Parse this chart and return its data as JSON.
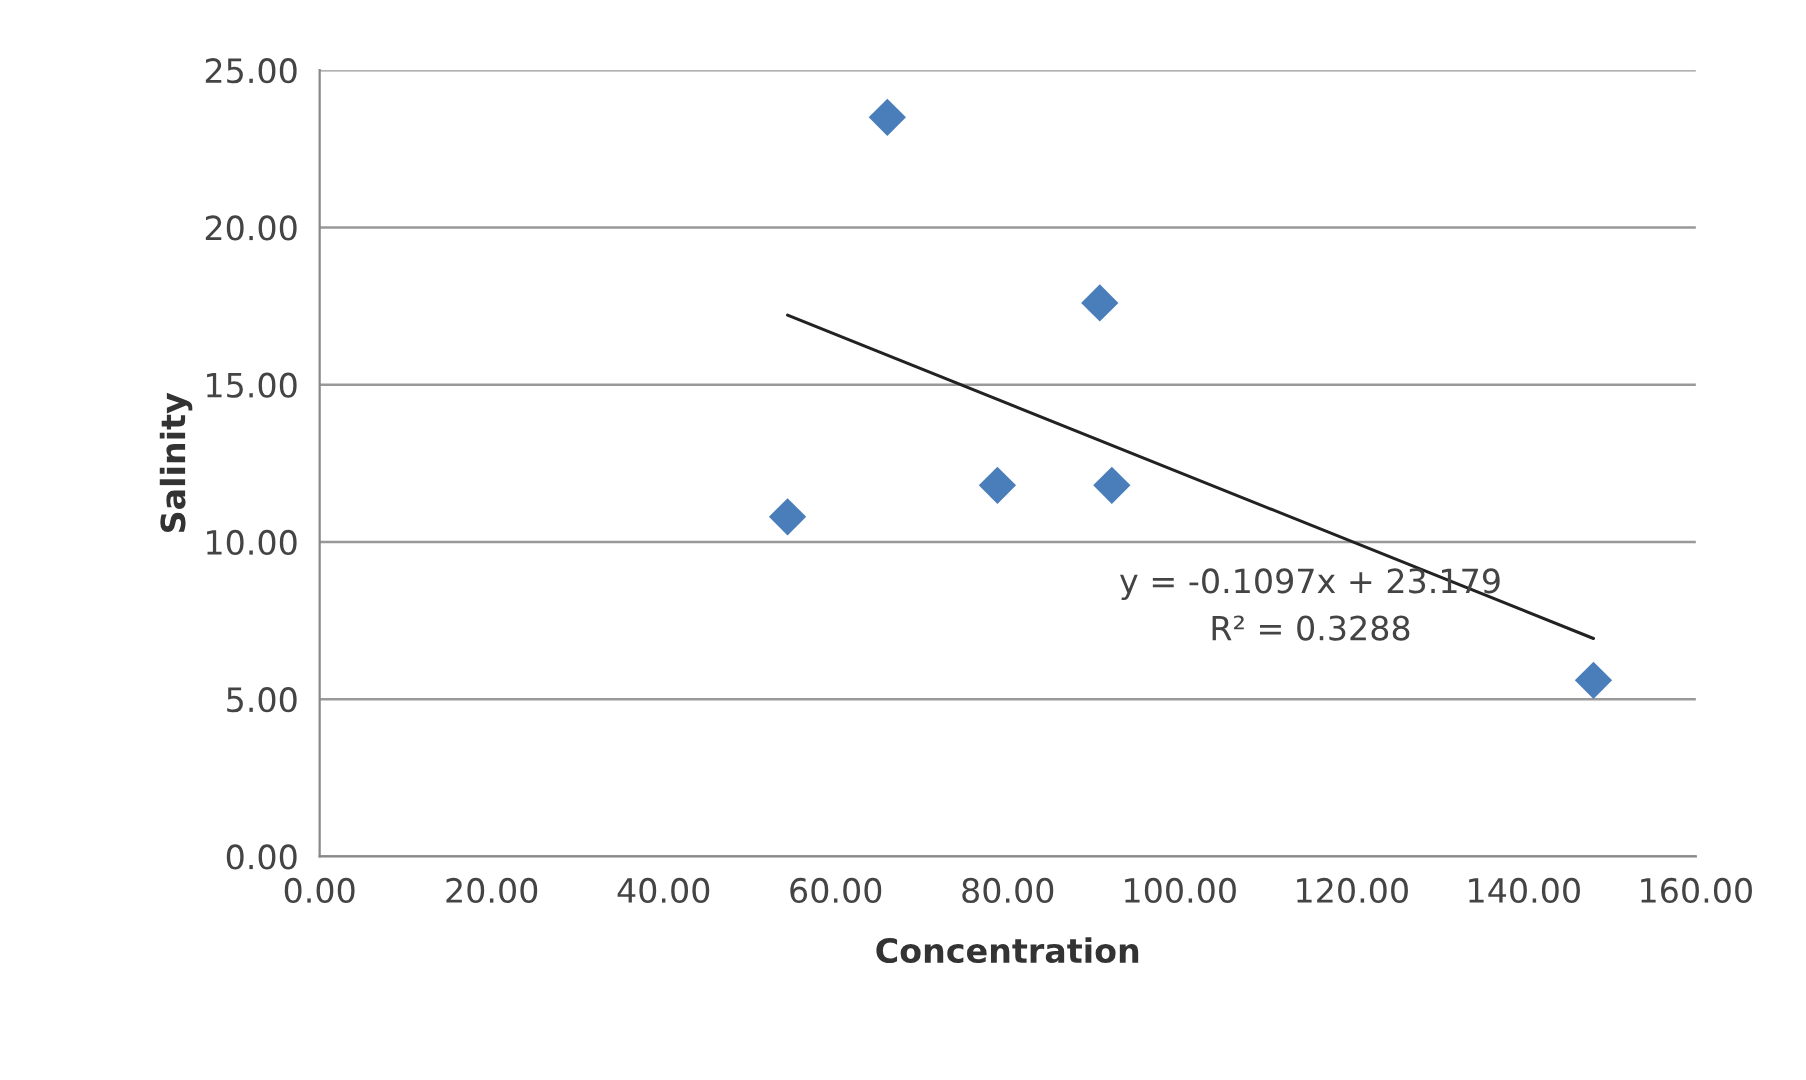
{
  "chart_data": {
    "type": "scatter",
    "xlabel": "Concentration",
    "ylabel": "Salinity",
    "series": [
      {
        "color": "#4a7ebb",
        "marker": "diamond",
        "x": [
          54.4,
          66.0,
          78.8,
          90.7,
          92.1,
          148.1
        ],
        "values": [
          10.8,
          23.5,
          11.8,
          17.6,
          11.8,
          5.6
        ]
      },
      {
        "type": "line",
        "color": "#222222",
        "marker": "none",
        "line_style": "solid",
        "x": [
          54.4,
          148.1
        ],
        "values": [
          17.21,
          6.93
        ]
      }
    ],
    "annotations": [
      "y = -0.1097x + 23.179",
      "R² = 0.3288"
    ],
    "xlim": [
      0,
      160
    ],
    "ylim": [
      0,
      25
    ],
    "xticks": [
      {
        "value": 0,
        "label": "0.00"
      },
      {
        "value": 20,
        "label": "20.00"
      },
      {
        "value": 40,
        "label": "40.00"
      },
      {
        "value": 60,
        "label": "60.00"
      },
      {
        "value": 80,
        "label": "80.00"
      },
      {
        "value": 100,
        "label": "100.00"
      },
      {
        "value": 120,
        "label": "120.00"
      },
      {
        "value": 140,
        "label": "140.00"
      },
      {
        "value": 160,
        "label": "160.00"
      }
    ],
    "yticks": [
      {
        "value": 0,
        "label": "0.00"
      },
      {
        "value": 5,
        "label": "5.00"
      },
      {
        "value": 10,
        "label": "10.00"
      },
      {
        "value": 15,
        "label": "15.00"
      },
      {
        "value": 20,
        "label": "20.00"
      },
      {
        "value": 25,
        "label": "25.00"
      }
    ],
    "grid": "y",
    "legend": false
  }
}
